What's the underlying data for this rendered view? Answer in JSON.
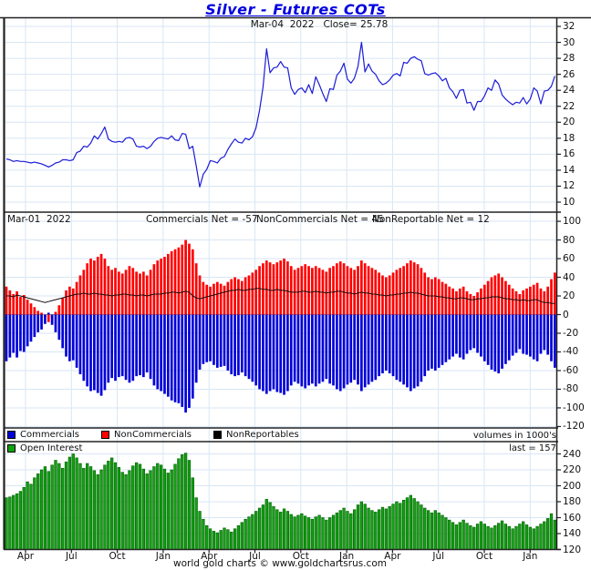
{
  "title": "Silver - Futures COTs",
  "subtitle": "Mar-04  2022   Close= 25.78",
  "panel2_header": {
    "date": "Mar-01  2022",
    "commercials": "Commercials Net = -57",
    "noncommercials": "NonCommercials Net = 45",
    "nonreportable": "NonReportable Net = 12"
  },
  "legend": {
    "items": [
      {
        "label": "Commercials",
        "color": "#0000d8"
      },
      {
        "label": "NonCommercials",
        "color": "#ff0000"
      },
      {
        "label": "NonReportables",
        "color": "#000000"
      }
    ],
    "volumes_note": "volumes in 1000's"
  },
  "legend2": {
    "label": "Open Interest",
    "color": "#12a012",
    "last_note": "last = 157"
  },
  "footer": "world gold charts © www.goldchartsrus.com",
  "colors": {
    "title": "#0000e0",
    "price_line": "#1c1cd6",
    "noncommercials": "#ff0000",
    "commercials": "#0000d8",
    "nonreportables": "#101010",
    "open_interest": "#12a012",
    "open_interest_edge": "#006000",
    "grid": "#d8e6f4",
    "border": "#222222",
    "zero_line": "#999999"
  },
  "xaxis": {
    "labels": [
      "Apr",
      "Jul",
      "Oct",
      "Jan",
      "Apr",
      "Jul",
      "Oct",
      "Jan",
      "Apr",
      "Jul",
      "Oct",
      "Jan"
    ]
  },
  "chart_data": [
    {
      "type": "line",
      "name": "silver-price",
      "title": "Silver - Futures COTs",
      "annotation": "Mar-04 2022 Close= 25.78",
      "ylim": [
        10,
        32
      ],
      "yticks": [
        32,
        30,
        28,
        26,
        24,
        22,
        20,
        18,
        16,
        14,
        12,
        10
      ],
      "values": [
        15.4,
        15.3,
        15.1,
        15.2,
        15.1,
        15.1,
        15.0,
        14.9,
        15.0,
        14.9,
        14.8,
        14.6,
        14.4,
        14.6,
        14.9,
        15.0,
        15.3,
        15.3,
        15.2,
        15.3,
        16.2,
        16.4,
        17.0,
        16.9,
        17.4,
        18.3,
        17.9,
        18.6,
        19.4,
        17.9,
        17.6,
        17.5,
        17.6,
        17.5,
        18.0,
        18.1,
        17.9,
        17.0,
        16.9,
        17.0,
        16.7,
        17.0,
        17.6,
        18.0,
        18.1,
        18.0,
        17.9,
        18.3,
        17.8,
        17.7,
        18.6,
        18.5,
        16.7,
        17.0,
        14.5,
        11.9,
        13.5,
        14.1,
        15.2,
        15.1,
        14.9,
        15.5,
        15.7,
        16.6,
        17.3,
        17.9,
        17.5,
        17.4,
        18.0,
        17.8,
        18.2,
        19.3,
        21.5,
        24.4,
        29.2,
        26.2,
        26.8,
        26.9,
        27.6,
        26.9,
        26.8,
        24.3,
        23.5,
        24.1,
        24.3,
        23.7,
        24.7,
        23.6,
        25.7,
        24.7,
        23.6,
        22.6,
        24.2,
        24.1,
        25.9,
        26.4,
        27.4,
        25.4,
        24.9,
        25.5,
        27.0,
        30.0,
        26.3,
        27.3,
        26.4,
        26.0,
        25.2,
        24.7,
        24.9,
        25.3,
        25.9,
        26.1,
        25.8,
        27.5,
        27.4,
        28.0,
        28.2,
        27.9,
        27.7,
        26.1,
        25.9,
        26.1,
        26.2,
        25.8,
        25.2,
        25.5,
        24.3,
        23.8,
        23.0,
        24.0,
        24.1,
        22.4,
        22.5,
        21.5,
        22.6,
        22.6,
        23.3,
        24.3,
        24.0,
        25.3,
        24.8,
        23.4,
        22.9,
        22.5,
        22.2,
        22.5,
        22.4,
        23.1,
        22.3,
        22.9,
        24.3,
        23.9,
        22.3,
        23.9,
        24.0,
        24.5,
        25.78
      ]
    },
    {
      "type": "bar",
      "name": "cot-net-positions",
      "ylim": [
        -120,
        100
      ],
      "yticks": [
        100,
        80,
        60,
        40,
        20,
        0,
        -20,
        -40,
        -60,
        -80,
        -100,
        -120
      ],
      "series": [
        {
          "name": "NonCommercials",
          "type": "bar",
          "color": "#ff0000",
          "net_label": "NonCommercials Net = 45",
          "values": [
            30,
            26,
            22,
            25,
            19,
            21,
            16,
            12,
            8,
            4,
            2,
            -3,
            -8,
            -4,
            3,
            10,
            18,
            26,
            30,
            28,
            35,
            42,
            48,
            55,
            60,
            58,
            62,
            65,
            60,
            52,
            48,
            50,
            46,
            44,
            48,
            52,
            50,
            46,
            44,
            46,
            42,
            48,
            54,
            58,
            60,
            62,
            65,
            68,
            70,
            72,
            75,
            80,
            76,
            70,
            55,
            42,
            35,
            32,
            30,
            33,
            35,
            33,
            31,
            35,
            38,
            40,
            38,
            36,
            40,
            42,
            45,
            48,
            52,
            55,
            58,
            56,
            54,
            56,
            58,
            60,
            57,
            52,
            48,
            50,
            52,
            54,
            52,
            50,
            52,
            50,
            48,
            46,
            50,
            52,
            55,
            57,
            55,
            52,
            50,
            48,
            52,
            58,
            55,
            52,
            50,
            48,
            45,
            42,
            40,
            42,
            45,
            48,
            50,
            52,
            55,
            58,
            56,
            54,
            50,
            45,
            40,
            38,
            40,
            38,
            35,
            33,
            30,
            28,
            25,
            28,
            30,
            25,
            22,
            20,
            24,
            28,
            32,
            36,
            40,
            42,
            44,
            40,
            36,
            32,
            28,
            25,
            22,
            26,
            28,
            30,
            32,
            34,
            28,
            25,
            30,
            38,
            45
          ]
        },
        {
          "name": "Commercials",
          "type": "bar",
          "color": "#0000d8",
          "net_label": "Commercials Net = -57",
          "values": [
            -50,
            -46,
            -41,
            -46,
            -39,
            -40,
            -34,
            -29,
            -24,
            -19,
            -16,
            -10,
            2,
            -11,
            -19,
            -27,
            -36,
            -45,
            -50,
            -49,
            -57,
            -64,
            -71,
            -77,
            -82,
            -81,
            -84,
            -87,
            -81,
            -73,
            -68,
            -71,
            -67,
            -66,
            -70,
            -73,
            -71,
            -66,
            -65,
            -67,
            -62,
            -69,
            -76,
            -80,
            -82,
            -85,
            -88,
            -92,
            -94,
            -95,
            -99,
            -105,
            -100,
            -90,
            -73,
            -59,
            -53,
            -51,
            -50,
            -54,
            -57,
            -56,
            -55,
            -60,
            -64,
            -66,
            -65,
            -62,
            -66,
            -69,
            -72,
            -76,
            -80,
            -82,
            -85,
            -82,
            -80,
            -83,
            -84,
            -86,
            -82,
            -76,
            -72,
            -74,
            -77,
            -79,
            -76,
            -74,
            -77,
            -74,
            -72,
            -69,
            -74,
            -76,
            -80,
            -82,
            -79,
            -75,
            -73,
            -70,
            -75,
            -82,
            -78,
            -75,
            -72,
            -70,
            -66,
            -63,
            -60,
            -63,
            -66,
            -70,
            -72,
            -75,
            -78,
            -82,
            -79,
            -77,
            -72,
            -66,
            -60,
            -58,
            -60,
            -57,
            -54,
            -51,
            -48,
            -45,
            -42,
            -46,
            -48,
            -42,
            -38,
            -36,
            -41,
            -45,
            -50,
            -54,
            -59,
            -61,
            -63,
            -58,
            -53,
            -49,
            -44,
            -41,
            -37,
            -42,
            -43,
            -45,
            -48,
            -50,
            -42,
            -38,
            -43,
            -50,
            -57
          ]
        },
        {
          "name": "NonReportables",
          "type": "line",
          "color": "#000000",
          "net_label": "NonReportable Net = 12",
          "values": [
            20,
            20,
            19,
            21,
            20,
            19,
            18,
            17,
            16,
            15,
            14,
            13,
            14,
            15,
            16,
            17,
            18,
            19,
            20,
            21,
            22,
            22,
            23,
            22,
            22,
            23,
            22,
            22,
            21,
            21,
            20,
            21,
            21,
            22,
            22,
            21,
            21,
            20,
            21,
            21,
            20,
            21,
            22,
            22,
            22,
            23,
            23,
            24,
            24,
            23,
            24,
            25,
            24,
            20,
            18,
            17,
            18,
            19,
            20,
            21,
            22,
            23,
            24,
            25,
            26,
            26,
            27,
            26,
            26,
            27,
            27,
            28,
            28,
            27,
            27,
            26,
            26,
            27,
            26,
            26,
            25,
            24,
            24,
            24,
            25,
            25,
            24,
            24,
            25,
            24,
            24,
            23,
            24,
            24,
            25,
            25,
            24,
            23,
            23,
            22,
            23,
            24,
            23,
            23,
            22,
            22,
            21,
            21,
            20,
            21,
            21,
            22,
            22,
            23,
            23,
            24,
            23,
            23,
            22,
            21,
            20,
            20,
            20,
            19,
            19,
            18,
            18,
            17,
            17,
            18,
            18,
            17,
            16,
            16,
            17,
            17,
            18,
            18,
            19,
            19,
            19,
            18,
            17,
            17,
            16,
            16,
            15,
            16,
            15,
            15,
            16,
            16,
            14,
            13,
            13,
            12,
            12
          ]
        }
      ]
    },
    {
      "type": "bar",
      "name": "open-interest",
      "legend": "Open Interest",
      "note": "volumes in 1000's",
      "last": 157,
      "ylim": [
        120,
        240
      ],
      "yticks": [
        240,
        220,
        200,
        180,
        160,
        140,
        120
      ],
      "values": [
        185,
        186,
        188,
        190,
        193,
        198,
        205,
        202,
        210,
        215,
        220,
        224,
        218,
        226,
        232,
        228,
        222,
        230,
        236,
        240,
        235,
        228,
        222,
        228,
        224,
        219,
        214,
        220,
        226,
        231,
        235,
        229,
        223,
        217,
        214,
        219,
        225,
        229,
        227,
        221,
        215,
        219,
        224,
        228,
        226,
        221,
        216,
        220,
        227,
        234,
        239,
        241,
        232,
        210,
        185,
        168,
        158,
        150,
        146,
        143,
        141,
        144,
        147,
        145,
        142,
        146,
        150,
        154,
        158,
        161,
        164,
        168,
        172,
        176,
        183,
        179,
        174,
        170,
        167,
        171,
        168,
        164,
        161,
        163,
        165,
        162,
        160,
        158,
        161,
        163,
        160,
        157,
        160,
        163,
        166,
        169,
        172,
        168,
        165,
        170,
        176,
        180,
        177,
        172,
        169,
        167,
        170,
        173,
        171,
        174,
        177,
        180,
        178,
        182,
        185,
        188,
        184,
        180,
        176,
        172,
        169,
        166,
        169,
        166,
        163,
        160,
        157,
        154,
        151,
        154,
        157,
        153,
        150,
        148,
        152,
        155,
        152,
        149,
        147,
        150,
        153,
        156,
        152,
        149,
        146,
        149,
        152,
        155,
        151,
        148,
        146,
        149,
        152,
        155,
        159,
        165,
        157
      ]
    }
  ]
}
